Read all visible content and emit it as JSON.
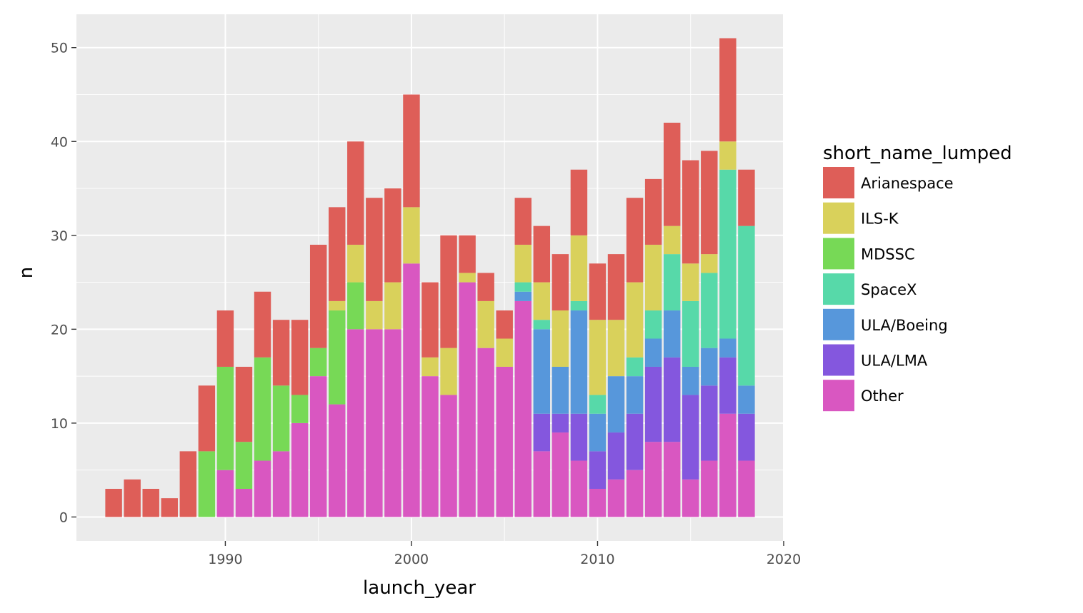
{
  "chart_data": {
    "type": "bar",
    "stacked": true,
    "xlabel": "launch_year",
    "ylabel": "n",
    "xlim": [
      1982,
      2020
    ],
    "ylim": [
      -2.55,
      53.55
    ],
    "xticks": [
      1990,
      2000,
      2010,
      2020
    ],
    "yticks": [
      0,
      10,
      20,
      30,
      40,
      50
    ],
    "x_tick_labels": [
      "1990",
      "2000",
      "2010",
      "2020"
    ],
    "y_tick_labels": [
      "0",
      "10",
      "20",
      "30",
      "40",
      "50"
    ],
    "grid": true,
    "legend": {
      "title": "short_name_lumped",
      "position": "right"
    },
    "x": [
      1984,
      1985,
      1986,
      1987,
      1988,
      1989,
      1990,
      1991,
      1992,
      1993,
      1994,
      1995,
      1996,
      1997,
      1998,
      1999,
      2000,
      2001,
      2002,
      2003,
      2004,
      2005,
      2006,
      2007,
      2008,
      2009,
      2010,
      2011,
      2012,
      2013,
      2014,
      2015,
      2016,
      2017,
      2018
    ],
    "stack_order": [
      "Other",
      "ULA/LMA",
      "ULA/Boeing",
      "SpaceX",
      "MDSSC",
      "ILS-K",
      "Arianespace"
    ],
    "series": [
      {
        "name": "Arianespace",
        "color": "#DE5E58",
        "values": [
          3,
          4,
          3,
          2,
          7,
          7,
          6,
          8,
          7,
          7,
          8,
          11,
          10,
          11,
          11,
          10,
          12,
          8,
          12,
          4,
          3,
          3,
          5,
          6,
          6,
          7,
          6,
          7,
          9,
          7,
          11,
          11,
          11,
          11,
          6
        ]
      },
      {
        "name": "ILS-K",
        "color": "#D9D15B",
        "values": [
          0,
          0,
          0,
          0,
          0,
          0,
          0,
          0,
          0,
          0,
          0,
          0,
          1,
          4,
          3,
          5,
          6,
          2,
          5,
          1,
          5,
          3,
          4,
          4,
          6,
          7,
          8,
          6,
          8,
          7,
          3,
          4,
          2,
          3,
          0
        ]
      },
      {
        "name": "MDSSC",
        "color": "#77D956",
        "values": [
          0,
          0,
          0,
          0,
          0,
          7,
          11,
          5,
          11,
          7,
          3,
          3,
          10,
          5,
          0,
          0,
          0,
          0,
          0,
          0,
          0,
          0,
          0,
          0,
          0,
          0,
          0,
          0,
          0,
          0,
          0,
          0,
          0,
          0,
          0
        ]
      },
      {
        "name": "SpaceX",
        "color": "#57D9A9",
        "values": [
          0,
          0,
          0,
          0,
          0,
          0,
          0,
          0,
          0,
          0,
          0,
          0,
          0,
          0,
          0,
          0,
          0,
          0,
          0,
          0,
          0,
          0,
          1,
          1,
          0,
          1,
          2,
          0,
          2,
          3,
          6,
          7,
          8,
          18,
          17
        ]
      },
      {
        "name": "ULA/Boeing",
        "color": "#5797DB",
        "values": [
          0,
          0,
          0,
          0,
          0,
          0,
          0,
          0,
          0,
          0,
          0,
          0,
          0,
          0,
          0,
          0,
          0,
          0,
          0,
          0,
          0,
          0,
          1,
          9,
          5,
          11,
          4,
          6,
          4,
          3,
          5,
          3,
          4,
          2,
          3
        ]
      },
      {
        "name": "ULA/LMA",
        "color": "#8457DE",
        "values": [
          0,
          0,
          0,
          0,
          0,
          0,
          0,
          0,
          0,
          0,
          0,
          0,
          0,
          0,
          0,
          0,
          0,
          0,
          0,
          0,
          0,
          0,
          0,
          4,
          2,
          5,
          4,
          5,
          6,
          8,
          9,
          9,
          8,
          6,
          5
        ]
      },
      {
        "name": "Other",
        "color": "#D957C1",
        "values": [
          0,
          0,
          0,
          0,
          0,
          0,
          5,
          3,
          6,
          7,
          10,
          15,
          12,
          20,
          20,
          20,
          27,
          15,
          13,
          25,
          18,
          16,
          23,
          7,
          9,
          6,
          3,
          4,
          5,
          8,
          8,
          4,
          6,
          11,
          6
        ]
      }
    ]
  }
}
